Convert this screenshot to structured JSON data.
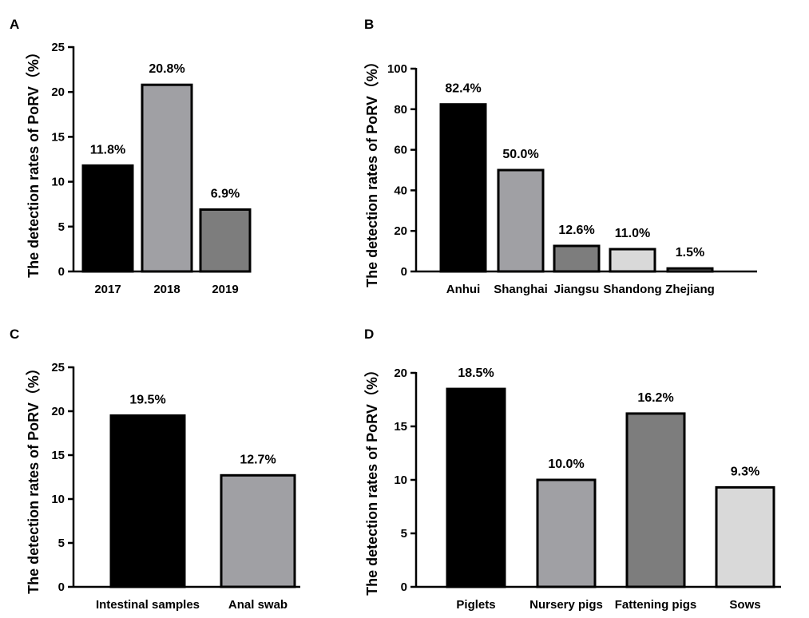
{
  "chart_data": [
    {
      "panel": "A",
      "type": "bar",
      "ylabel": "The detection rates of PoRV（%）",
      "ylim": [
        0,
        25
      ],
      "yticks": [
        "0",
        "5",
        "10",
        "15",
        "20",
        "25"
      ],
      "categories": [
        "2017",
        "2018",
        "2019"
      ],
      "values": [
        11.8,
        20.8,
        6.9
      ],
      "value_labels": [
        "11.8%",
        "20.8%",
        "6.9%"
      ],
      "colors": [
        "#000000",
        "#a0a0a4",
        "#7d7d7d"
      ]
    },
    {
      "panel": "B",
      "type": "bar",
      "ylabel": "The detection rates of PoRV（%）",
      "ylim": [
        0,
        100
      ],
      "yticks": [
        "0",
        "20",
        "40",
        "60",
        "80",
        "100"
      ],
      "categories": [
        "Anhui",
        "Shanghai",
        "Jiangsu",
        "Shandong",
        "Zhejiang"
      ],
      "values": [
        82.4,
        50.0,
        12.6,
        11.0,
        1.5
      ],
      "value_labels": [
        "82.4%",
        "50.0%",
        "12.6%",
        "11.0%",
        "1.5%"
      ],
      "colors": [
        "#000000",
        "#a0a0a4",
        "#7d7d7d",
        "#d9d9d9",
        "#7d7d7d"
      ]
    },
    {
      "panel": "C",
      "type": "bar",
      "ylabel": "The detection rates of PoRV（%）",
      "ylim": [
        0,
        25
      ],
      "yticks": [
        "0",
        "5",
        "10",
        "15",
        "20",
        "25"
      ],
      "categories": [
        "Intestinal samples",
        "Anal swab"
      ],
      "values": [
        19.5,
        12.7
      ],
      "value_labels": [
        "19.5%",
        "12.7%"
      ],
      "colors": [
        "#000000",
        "#a0a0a4"
      ]
    },
    {
      "panel": "D",
      "type": "bar",
      "ylabel": "The detection rates of PoRV（%）",
      "ylim": [
        0,
        20
      ],
      "yticks": [
        "0",
        "5",
        "10",
        "15",
        "20"
      ],
      "categories": [
        "Piglets",
        "Nursery pigs",
        "Fattening pigs",
        "Sows"
      ],
      "values": [
        18.5,
        10.0,
        16.2,
        9.3
      ],
      "value_labels": [
        "18.5%",
        "10.0%",
        "16.2%",
        "9.3%"
      ],
      "colors": [
        "#000000",
        "#a0a0a4",
        "#7d7d7d",
        "#d9d9d9"
      ]
    }
  ]
}
